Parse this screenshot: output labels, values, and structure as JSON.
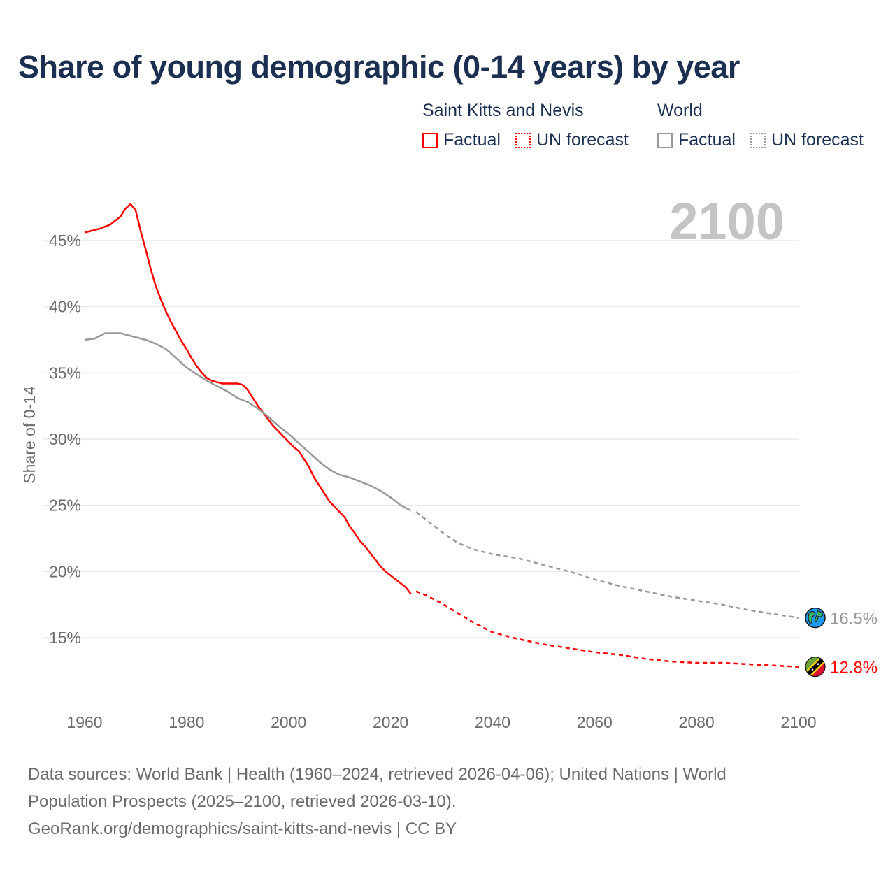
{
  "chart_data": {
    "type": "line",
    "title": "Share of young demographic (0-14 years) by year",
    "xlabel": "",
    "ylabel": "Share of 0-14",
    "xlim": [
      1960,
      2100
    ],
    "ylim": [
      10.5,
      48.5
    ],
    "x_ticks": [
      1960,
      1980,
      2000,
      2020,
      2040,
      2060,
      2080,
      2100
    ],
    "x_tick_labels": [
      "1960",
      "1980",
      "2000",
      "2020",
      "2040",
      "2060",
      "2080",
      "2100"
    ],
    "y_ticks": [
      15,
      20,
      25,
      30,
      35,
      40,
      45
    ],
    "y_tick_labels": [
      "15%",
      "20%",
      "25%",
      "30%",
      "35%",
      "40%",
      "45%"
    ],
    "grid": true,
    "year_watermark": "2100",
    "legend": {
      "placement": "top-right",
      "groups": [
        {
          "name": "Saint Kitts and Nevis",
          "items": [
            "Factual",
            "UN forecast"
          ]
        },
        {
          "name": "World",
          "items": [
            "Factual",
            "UN forecast"
          ]
        }
      ]
    },
    "series": [
      {
        "name": "Saint Kitts and Nevis – Factual",
        "color": "#ff0000",
        "style": "solid",
        "x": [
          1960,
          1963,
          1965,
          1967,
          1968,
          1969,
          1970,
          1971,
          1972,
          1973,
          1974,
          1975,
          1976,
          1977,
          1978,
          1979,
          1980,
          1981,
          1982,
          1983,
          1984,
          1985,
          1986,
          1987,
          1988,
          1989,
          1990,
          1991,
          1992,
          1993,
          1994,
          1995,
          1996,
          1997,
          1998,
          1999,
          2000,
          2001,
          2002,
          2003,
          2004,
          2005,
          2006,
          2007,
          2008,
          2009,
          2010,
          2011,
          2012,
          2013,
          2014,
          2015,
          2016,
          2017,
          2018,
          2019,
          2020,
          2021,
          2022,
          2023,
          2024
        ],
        "y": [
          45.6,
          45.9,
          46.2,
          46.8,
          47.4,
          47.75,
          47.3,
          45.7,
          44.3,
          42.8,
          41.5,
          40.5,
          39.6,
          38.8,
          38.1,
          37.4,
          36.8,
          36.1,
          35.5,
          35.0,
          34.6,
          34.4,
          34.3,
          34.2,
          34.2,
          34.2,
          34.2,
          34.1,
          33.7,
          33.1,
          32.5,
          32.0,
          31.5,
          31.0,
          30.6,
          30.2,
          29.8,
          29.4,
          29.1,
          28.5,
          27.9,
          27.1,
          26.5,
          25.9,
          25.3,
          24.9,
          24.5,
          24.1,
          23.4,
          22.9,
          22.3,
          21.9,
          21.4,
          20.9,
          20.4,
          20.0,
          19.7,
          19.4,
          19.1,
          18.8,
          18.3
        ]
      },
      {
        "name": "Saint Kitts and Nevis – UN forecast",
        "color": "#ff0000",
        "style": "dashed",
        "x": [
          2025,
          2027,
          2030,
          2033,
          2036,
          2040,
          2045,
          2050,
          2055,
          2060,
          2065,
          2070,
          2075,
          2080,
          2085,
          2090,
          2095,
          2100
        ],
        "y": [
          18.5,
          18.2,
          17.6,
          16.9,
          16.2,
          15.4,
          14.9,
          14.5,
          14.2,
          13.9,
          13.7,
          13.4,
          13.2,
          13.1,
          13.1,
          13.0,
          12.9,
          12.8
        ]
      },
      {
        "name": "World – Factual",
        "color": "#999999",
        "style": "solid",
        "x": [
          1960,
          1962,
          1964,
          1967,
          1970,
          1972,
          1974,
          1976,
          1978,
          1980,
          1982,
          1984,
          1986,
          1988,
          1990,
          1992,
          1994,
          1996,
          1998,
          2000,
          2002,
          2004,
          2006,
          2008,
          2010,
          2012,
          2014,
          2016,
          2018,
          2020,
          2022,
          2024
        ],
        "y": [
          37.5,
          37.6,
          38.0,
          38.0,
          37.7,
          37.5,
          37.2,
          36.8,
          36.1,
          35.4,
          34.9,
          34.4,
          34.0,
          33.6,
          33.1,
          32.8,
          32.3,
          31.7,
          31.0,
          30.4,
          29.7,
          29.0,
          28.3,
          27.7,
          27.3,
          27.1,
          26.8,
          26.5,
          26.1,
          25.6,
          25.0,
          24.6
        ]
      },
      {
        "name": "World – UN forecast",
        "color": "#999999",
        "style": "dashed",
        "x": [
          2025,
          2030,
          2033,
          2036,
          2040,
          2045,
          2050,
          2055,
          2060,
          2065,
          2070,
          2075,
          2080,
          2085,
          2090,
          2095,
          2100
        ],
        "y": [
          24.5,
          23.0,
          22.2,
          21.7,
          21.3,
          21.0,
          20.5,
          20.0,
          19.4,
          18.9,
          18.5,
          18.1,
          17.8,
          17.5,
          17.1,
          16.8,
          16.5
        ]
      }
    ],
    "end_labels": [
      {
        "series": "World",
        "text": "16.5%",
        "value": 16.5,
        "color": "#999999",
        "icon": "globe-icon"
      },
      {
        "series": "Saint Kitts and Nevis",
        "text": "12.8%",
        "value": 12.8,
        "color": "#ff0000",
        "icon": "saint-kitts-flag-icon"
      }
    ]
  },
  "footer": {
    "line1": "Data sources: World Bank | Health (1960–2024, retrieved 2026-04-06); United Nations | World",
    "line2": "Population Prospects (2025–2100, retrieved 2026-03-10).",
    "line3": "GeoRank.org/demographics/saint-kitts-and-nevis | CC BY"
  }
}
